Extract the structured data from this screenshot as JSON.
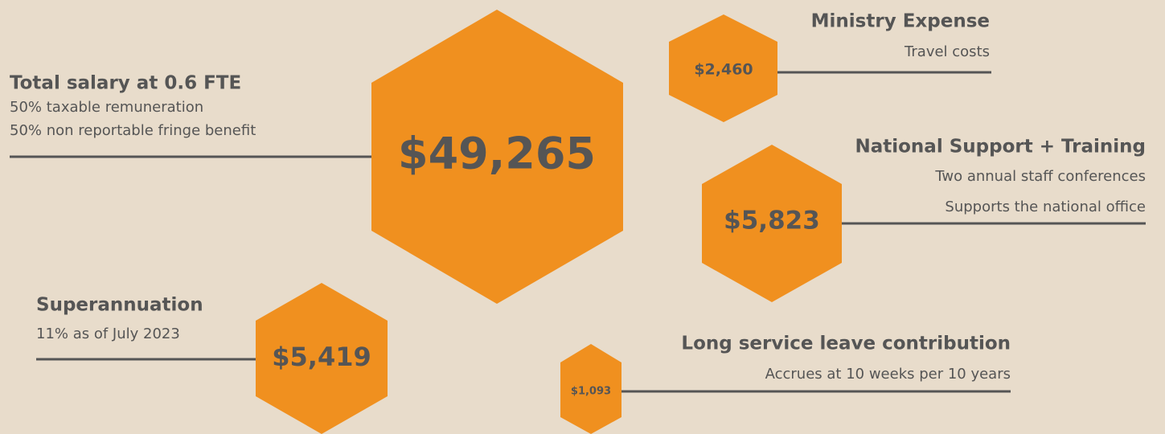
{
  "items": [
    {
      "amount": "$49,265",
      "title": "Total salary at 0.6 FTE",
      "description": [
        "50% taxable remuneration",
        "50% non reportable fringe benefit"
      ]
    },
    {
      "amount": "$2,460",
      "title": "Ministry Expense",
      "description": [
        "Travel costs"
      ]
    },
    {
      "amount": "$5,823",
      "title": "National Support + Training",
      "description": [
        "Two annual staff conferences",
        "Supports the national office"
      ]
    },
    {
      "amount": "$5,419",
      "title": "Superannuation",
      "description": [
        "11% as of July 2023"
      ]
    },
    {
      "amount": "$1,093",
      "title": "Long service leave contribution",
      "description": [
        "Accrues at 10 weeks per 10 years"
      ]
    }
  ]
}
